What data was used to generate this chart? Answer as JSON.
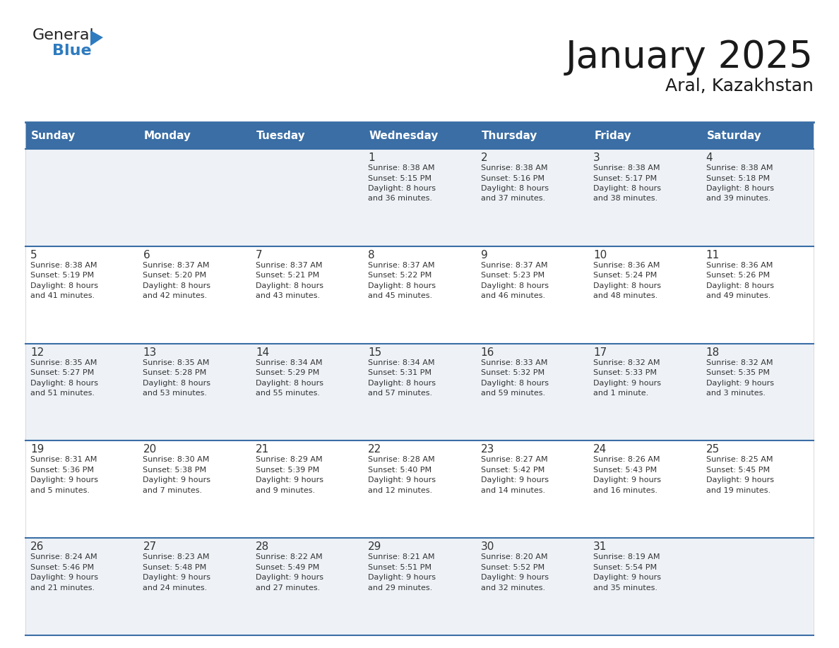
{
  "title": "January 2025",
  "subtitle": "Aral, Kazakhstan",
  "header_color": "#3a6ea5",
  "header_text_color": "#ffffff",
  "cell_bg_odd": "#eef2f7",
  "cell_bg_even": "#ffffff",
  "border_color": "#3a6ea5",
  "text_color": "#333333",
  "days_of_week": [
    "Sunday",
    "Monday",
    "Tuesday",
    "Wednesday",
    "Thursday",
    "Friday",
    "Saturday"
  ],
  "title_fontsize": 38,
  "subtitle_fontsize": 18,
  "header_fontsize": 11,
  "day_num_fontsize": 11,
  "cell_text_fontsize": 8,
  "calendar_data": [
    [
      {
        "day": "",
        "sunrise": "",
        "sunset": "",
        "daylight": ""
      },
      {
        "day": "",
        "sunrise": "",
        "sunset": "",
        "daylight": ""
      },
      {
        "day": "",
        "sunrise": "",
        "sunset": "",
        "daylight": ""
      },
      {
        "day": "1",
        "sunrise": "8:38 AM",
        "sunset": "5:15 PM",
        "daylight": "8 hours and 36 minutes."
      },
      {
        "day": "2",
        "sunrise": "8:38 AM",
        "sunset": "5:16 PM",
        "daylight": "8 hours and 37 minutes."
      },
      {
        "day": "3",
        "sunrise": "8:38 AM",
        "sunset": "5:17 PM",
        "daylight": "8 hours and 38 minutes."
      },
      {
        "day": "4",
        "sunrise": "8:38 AM",
        "sunset": "5:18 PM",
        "daylight": "8 hours and 39 minutes."
      }
    ],
    [
      {
        "day": "5",
        "sunrise": "8:38 AM",
        "sunset": "5:19 PM",
        "daylight": "8 hours and 41 minutes."
      },
      {
        "day": "6",
        "sunrise": "8:37 AM",
        "sunset": "5:20 PM",
        "daylight": "8 hours and 42 minutes."
      },
      {
        "day": "7",
        "sunrise": "8:37 AM",
        "sunset": "5:21 PM",
        "daylight": "8 hours and 43 minutes."
      },
      {
        "day": "8",
        "sunrise": "8:37 AM",
        "sunset": "5:22 PM",
        "daylight": "8 hours and 45 minutes."
      },
      {
        "day": "9",
        "sunrise": "8:37 AM",
        "sunset": "5:23 PM",
        "daylight": "8 hours and 46 minutes."
      },
      {
        "day": "10",
        "sunrise": "8:36 AM",
        "sunset": "5:24 PM",
        "daylight": "8 hours and 48 minutes."
      },
      {
        "day": "11",
        "sunrise": "8:36 AM",
        "sunset": "5:26 PM",
        "daylight": "8 hours and 49 minutes."
      }
    ],
    [
      {
        "day": "12",
        "sunrise": "8:35 AM",
        "sunset": "5:27 PM",
        "daylight": "8 hours and 51 minutes."
      },
      {
        "day": "13",
        "sunrise": "8:35 AM",
        "sunset": "5:28 PM",
        "daylight": "8 hours and 53 minutes."
      },
      {
        "day": "14",
        "sunrise": "8:34 AM",
        "sunset": "5:29 PM",
        "daylight": "8 hours and 55 minutes."
      },
      {
        "day": "15",
        "sunrise": "8:34 AM",
        "sunset": "5:31 PM",
        "daylight": "8 hours and 57 minutes."
      },
      {
        "day": "16",
        "sunrise": "8:33 AM",
        "sunset": "5:32 PM",
        "daylight": "8 hours and 59 minutes."
      },
      {
        "day": "17",
        "sunrise": "8:32 AM",
        "sunset": "5:33 PM",
        "daylight": "9 hours and 1 minute."
      },
      {
        "day": "18",
        "sunrise": "8:32 AM",
        "sunset": "5:35 PM",
        "daylight": "9 hours and 3 minutes."
      }
    ],
    [
      {
        "day": "19",
        "sunrise": "8:31 AM",
        "sunset": "5:36 PM",
        "daylight": "9 hours and 5 minutes."
      },
      {
        "day": "20",
        "sunrise": "8:30 AM",
        "sunset": "5:38 PM",
        "daylight": "9 hours and 7 minutes."
      },
      {
        "day": "21",
        "sunrise": "8:29 AM",
        "sunset": "5:39 PM",
        "daylight": "9 hours and 9 minutes."
      },
      {
        "day": "22",
        "sunrise": "8:28 AM",
        "sunset": "5:40 PM",
        "daylight": "9 hours and 12 minutes."
      },
      {
        "day": "23",
        "sunrise": "8:27 AM",
        "sunset": "5:42 PM",
        "daylight": "9 hours and 14 minutes."
      },
      {
        "day": "24",
        "sunrise": "8:26 AM",
        "sunset": "5:43 PM",
        "daylight": "9 hours and 16 minutes."
      },
      {
        "day": "25",
        "sunrise": "8:25 AM",
        "sunset": "5:45 PM",
        "daylight": "9 hours and 19 minutes."
      }
    ],
    [
      {
        "day": "26",
        "sunrise": "8:24 AM",
        "sunset": "5:46 PM",
        "daylight": "9 hours and 21 minutes."
      },
      {
        "day": "27",
        "sunrise": "8:23 AM",
        "sunset": "5:48 PM",
        "daylight": "9 hours and 24 minutes."
      },
      {
        "day": "28",
        "sunrise": "8:22 AM",
        "sunset": "5:49 PM",
        "daylight": "9 hours and 27 minutes."
      },
      {
        "day": "29",
        "sunrise": "8:21 AM",
        "sunset": "5:51 PM",
        "daylight": "9 hours and 29 minutes."
      },
      {
        "day": "30",
        "sunrise": "8:20 AM",
        "sunset": "5:52 PM",
        "daylight": "9 hours and 32 minutes."
      },
      {
        "day": "31",
        "sunrise": "8:19 AM",
        "sunset": "5:54 PM",
        "daylight": "9 hours and 35 minutes."
      },
      {
        "day": "",
        "sunrise": "",
        "sunset": "",
        "daylight": ""
      }
    ]
  ]
}
